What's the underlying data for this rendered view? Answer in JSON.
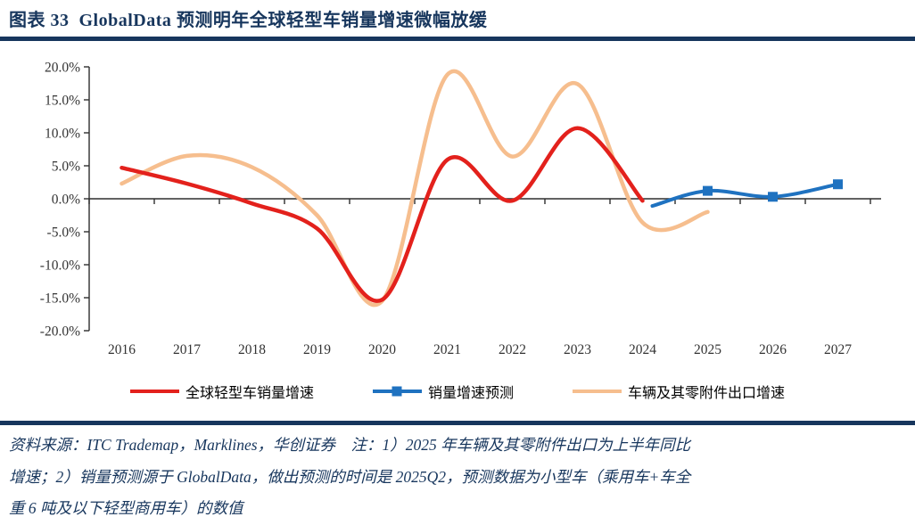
{
  "header": {
    "title": "图表 33  GlobalData 预测明年全球轻型车销量增速微幅放缓"
  },
  "chart_data": {
    "type": "line",
    "title": "图表 33  GlobalData 预测明年全球轻型车销量增速微幅放缓",
    "categories": [
      "2016",
      "2017",
      "2018",
      "2019",
      "2020",
      "2021",
      "2022",
      "2023",
      "2024",
      "2025",
      "2026",
      "2027"
    ],
    "ylim": [
      -20,
      20
    ],
    "ytick_step": 5,
    "ytick_labels": [
      "20.0%",
      "15.0%",
      "10.0%",
      "5.0%",
      "0.0%",
      "-5.0%",
      "-10.0%",
      "-15.0%",
      "-20.0%"
    ],
    "grid": "none",
    "legend_position": "bottom",
    "series": [
      {
        "name": "车辆及其零附件出口增速",
        "color": "#F6BE8E",
        "style": "smooth",
        "marker": "none",
        "width": 4.5,
        "years": [
          2016,
          2017,
          2018,
          2019,
          2020,
          2021,
          2022,
          2023,
          2024,
          2025
        ],
        "values": [
          2.3,
          6.5,
          4.8,
          -2.5,
          -15.5,
          18.8,
          6.4,
          17.4,
          -3.6,
          -2.0
        ]
      },
      {
        "name": "全球轻型车销量增速",
        "color": "#E3211C",
        "style": "smooth",
        "marker": "none",
        "width": 4.5,
        "years": [
          2016,
          2017,
          2018,
          2019,
          2020,
          2021,
          2022,
          2023,
          2024
        ],
        "values": [
          4.7,
          2.3,
          -0.7,
          -4.5,
          -15.3,
          5.9,
          -0.3,
          10.7,
          -0.3
        ]
      },
      {
        "name": "销量增速预测",
        "color": "#1F72C0",
        "style": "smooth",
        "marker": "square",
        "width": 4,
        "years": [
          2024.15,
          2025,
          2026,
          2027
        ],
        "values": [
          -1.1,
          1.2,
          0.3,
          2.2
        ]
      }
    ]
  },
  "footer": {
    "lines": [
      "资料来源：ITC Trademap，Marklines，华创证券　注：1）2025 年车辆及其零附件出口为上半年同比",
      "增速；2）销量预测源于 GlobalData，做出预测的时间是 2025Q2，预测数据为小型车（乘用车+车全",
      "重 6 吨及以下轻型商用车）的数值"
    ]
  },
  "colors": {
    "accent_navy": "#17365D",
    "axis": "#2E2E2E"
  }
}
